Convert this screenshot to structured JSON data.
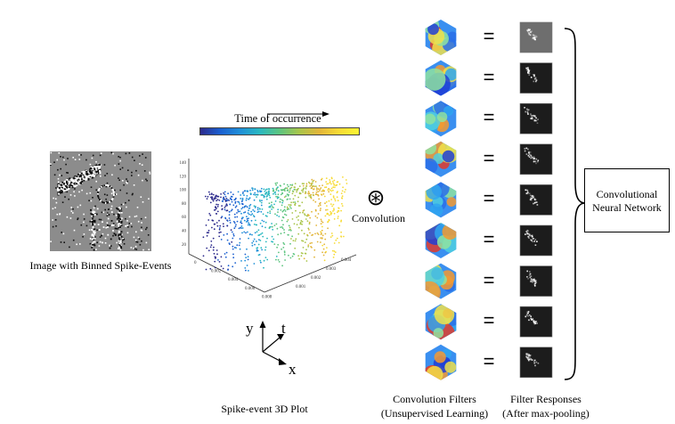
{
  "image_panel": {
    "caption": "Image with Binned Spike-Events"
  },
  "colorbar": {
    "label": "Time of occurrence"
  },
  "plot3d": {
    "caption": "Spike-event 3D Plot",
    "z_ticks": [
      "140",
      "120",
      "100",
      "80",
      "60",
      "40",
      "20"
    ],
    "x_ticks": [
      "0",
      "0.002",
      "0.004",
      "0.006",
      "0.008"
    ],
    "y_ticks": [
      "0.001",
      "0.002",
      "0.003",
      "0.004"
    ],
    "axes": {
      "y": "y",
      "t": "t",
      "x": "x"
    }
  },
  "convolution": {
    "symbol": "⊛",
    "label": "Convolution"
  },
  "filters": {
    "count": 9,
    "caption_line1": "Convolution Filters",
    "caption_line2": "(Unsupervised Learning)"
  },
  "equals_sign": "=",
  "responses": {
    "caption_line1": "Filter Responses",
    "caption_line2": "(After max-pooling)"
  },
  "cnn_box": {
    "line1": "Convolutional",
    "line2": "Neural Network"
  }
}
